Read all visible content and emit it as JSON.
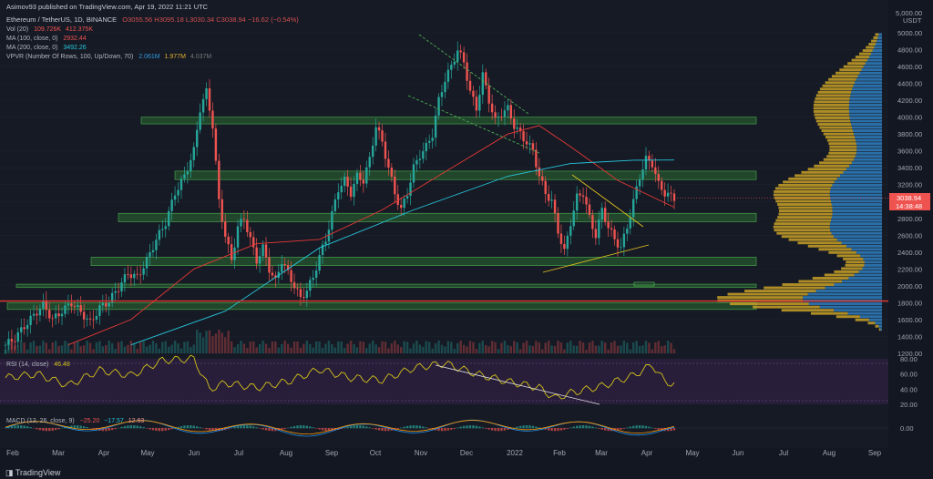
{
  "header": {
    "published": "Asimov93 published on TradingView.com, Apr 19, 2022 11:21 UTC",
    "symbol_line": "Ethereum / TetherUS, 1D, BINANCE",
    "ohlc": "O3055.56  H3095.18  L3030.34  C3038.94  −16.62 (−0.54%)",
    "vol_label": "Vol (20)",
    "vol_v1": "109.726K",
    "vol_v2": "412.375K",
    "ma100_label": "MA (100, close, 0)",
    "ma100_val": "2932.44",
    "ma200_label": "MA (200, close, 0)",
    "ma200_val": "3492.26",
    "vpvr_label": "VPVR (Number Of Rows, 100, Up/Down, 70)",
    "vpvr_v1": "2.061M",
    "vpvr_v2": "1.977M",
    "vpvr_v3": "4.037M"
  },
  "price_axis": {
    "unit_top": "5,000.00",
    "unit": "USDT",
    "ticks": [
      "5000.00",
      "4800.00",
      "4600.00",
      "4400.00",
      "4200.00",
      "4000.00",
      "3800.00",
      "3600.00",
      "3400.00",
      "3200.00",
      "3000.00",
      "2800.00",
      "2600.00",
      "2400.00",
      "2200.00",
      "2000.00",
      "1800.00",
      "1600.00",
      "1400.00",
      "1200.00"
    ],
    "last_price": "3038.94",
    "countdown": "14:38:48"
  },
  "rsi": {
    "label": "RSI (14, close)",
    "value": "46.48",
    "ticks": [
      "80.00",
      "60.00",
      "40.00",
      "20.00"
    ]
  },
  "macd": {
    "label": "MACD (12, 26, close, 9)",
    "v1": "−25.20",
    "v2": "−17.57",
    "v3": "12.63",
    "ticks": [
      "0.00"
    ]
  },
  "time_axis": [
    "Feb",
    "Mar",
    "Apr",
    "May",
    "Jun",
    "Jul",
    "Aug",
    "Sep",
    "Oct",
    "Nov",
    "Dec",
    "2022",
    "Feb",
    "Mar",
    "Apr",
    "May",
    "Jun",
    "Jul",
    "Aug",
    "Sep"
  ],
  "footer": {
    "brand": "TradingView"
  },
  "colors": {
    "up": "#26a69a",
    "down": "#ef5350",
    "zone": "#2e7d32",
    "ma100": "#e53935",
    "ma200": "#26c6da",
    "rsi": "#d4c21a",
    "vp_up": "#2f7fc0",
    "vp_down": "#c9a227"
  },
  "chart_data": {
    "type": "line",
    "title": "Ethereum / TetherUS, 1D, BINANCE",
    "ylim": [
      1200,
      5000
    ],
    "close_path": [
      [
        0,
        1300
      ],
      [
        3,
        1380
      ],
      [
        6,
        1520
      ],
      [
        9,
        1650
      ],
      [
        12,
        1780
      ],
      [
        15,
        1600
      ],
      [
        18,
        1700
      ],
      [
        21,
        1800
      ],
      [
        24,
        1690
      ],
      [
        27,
        1560
      ],
      [
        30,
        1740
      ],
      [
        33,
        1820
      ],
      [
        36,
        1980
      ],
      [
        39,
        2150
      ],
      [
        42,
        2100
      ],
      [
        45,
        2300
      ],
      [
        48,
        2550
      ],
      [
        51,
        2750
      ],
      [
        54,
        3100
      ],
      [
        57,
        3300
      ],
      [
        60,
        3600
      ],
      [
        62,
        4100
      ],
      [
        64,
        4300
      ],
      [
        66,
        3900
      ],
      [
        68,
        3000
      ],
      [
        70,
        2600
      ],
      [
        72,
        2300
      ],
      [
        74,
        2700
      ],
      [
        76,
        2800
      ],
      [
        78,
        2550
      ],
      [
        80,
        2300
      ],
      [
        82,
        2450
      ],
      [
        84,
        2200
      ],
      [
        86,
        2050
      ],
      [
        88,
        2300
      ],
      [
        90,
        2150
      ],
      [
        92,
        2000
      ],
      [
        94,
        1850
      ],
      [
        96,
        1950
      ],
      [
        98,
        2100
      ],
      [
        100,
        2350
      ],
      [
        102,
        2550
      ],
      [
        104,
        2850
      ],
      [
        106,
        3150
      ],
      [
        108,
        3250
      ],
      [
        110,
        3100
      ],
      [
        112,
        3300
      ],
      [
        114,
        3250
      ],
      [
        116,
        3500
      ],
      [
        118,
        3900
      ],
      [
        120,
        3700
      ],
      [
        122,
        3400
      ],
      [
        124,
        3100
      ],
      [
        126,
        2900
      ],
      [
        128,
        3100
      ],
      [
        130,
        3400
      ],
      [
        132,
        3550
      ],
      [
        134,
        3650
      ],
      [
        136,
        3800
      ],
      [
        138,
        4200
      ],
      [
        140,
        4450
      ],
      [
        142,
        4600
      ],
      [
        144,
        4800
      ],
      [
        146,
        4650
      ],
      [
        148,
        4300
      ],
      [
        150,
        4100
      ],
      [
        152,
        4500
      ],
      [
        154,
        4200
      ],
      [
        156,
        3950
      ],
      [
        158,
        4050
      ],
      [
        160,
        4100
      ],
      [
        162,
        3900
      ],
      [
        164,
        3800
      ],
      [
        166,
        3700
      ],
      [
        168,
        3600
      ],
      [
        170,
        3300
      ],
      [
        172,
        3100
      ],
      [
        174,
        3000
      ],
      [
        176,
        2650
      ],
      [
        178,
        2400
      ],
      [
        180,
        2750
      ],
      [
        182,
        3050
      ],
      [
        184,
        3100
      ],
      [
        186,
        2800
      ],
      [
        188,
        2600
      ],
      [
        190,
        2900
      ],
      [
        192,
        2700
      ],
      [
        194,
        2550
      ],
      [
        196,
        2450
      ],
      [
        198,
        2700
      ],
      [
        200,
        3000
      ],
      [
        202,
        3300
      ],
      [
        204,
        3500
      ],
      [
        206,
        3450
      ],
      [
        208,
        3200
      ],
      [
        210,
        3100
      ],
      [
        212,
        3060
      ],
      [
        213,
        3039
      ]
    ],
    "ma100_path": [
      [
        20,
        1300
      ],
      [
        40,
        1600
      ],
      [
        60,
        2200
      ],
      [
        80,
        2500
      ],
      [
        100,
        2550
      ],
      [
        120,
        2900
      ],
      [
        140,
        3350
      ],
      [
        160,
        3800
      ],
      [
        170,
        3900
      ],
      [
        180,
        3650
      ],
      [
        195,
        3250
      ],
      [
        213,
        2932
      ]
    ],
    "ma200_path": [
      [
        40,
        1300
      ],
      [
        70,
        1700
      ],
      [
        100,
        2450
      ],
      [
        130,
        2900
      ],
      [
        160,
        3300
      ],
      [
        180,
        3450
      ],
      [
        200,
        3490
      ],
      [
        213,
        3492
      ]
    ],
    "support_resistance_zones": [
      [
        3920,
        4000
      ],
      [
        3260,
        3360
      ],
      [
        2760,
        2860
      ],
      [
        2240,
        2340
      ],
      [
        1980,
        2020
      ],
      [
        1720,
        1800
      ]
    ],
    "red_level": 1820,
    "rsi_path": [
      [
        0,
        55
      ],
      [
        10,
        60
      ],
      [
        20,
        45
      ],
      [
        30,
        65
      ],
      [
        40,
        58
      ],
      [
        50,
        78
      ],
      [
        60,
        80
      ],
      [
        65,
        40
      ],
      [
        70,
        48
      ],
      [
        80,
        42
      ],
      [
        90,
        50
      ],
      [
        100,
        66
      ],
      [
        110,
        55
      ],
      [
        120,
        52
      ],
      [
        130,
        68
      ],
      [
        140,
        74
      ],
      [
        150,
        60
      ],
      [
        160,
        50
      ],
      [
        170,
        42
      ],
      [
        175,
        28
      ],
      [
        180,
        35
      ],
      [
        190,
        44
      ],
      [
        200,
        58
      ],
      [
        206,
        72
      ],
      [
        210,
        50
      ],
      [
        213,
        46.48
      ]
    ],
    "rsi_ylim": [
      20,
      80
    ]
  }
}
